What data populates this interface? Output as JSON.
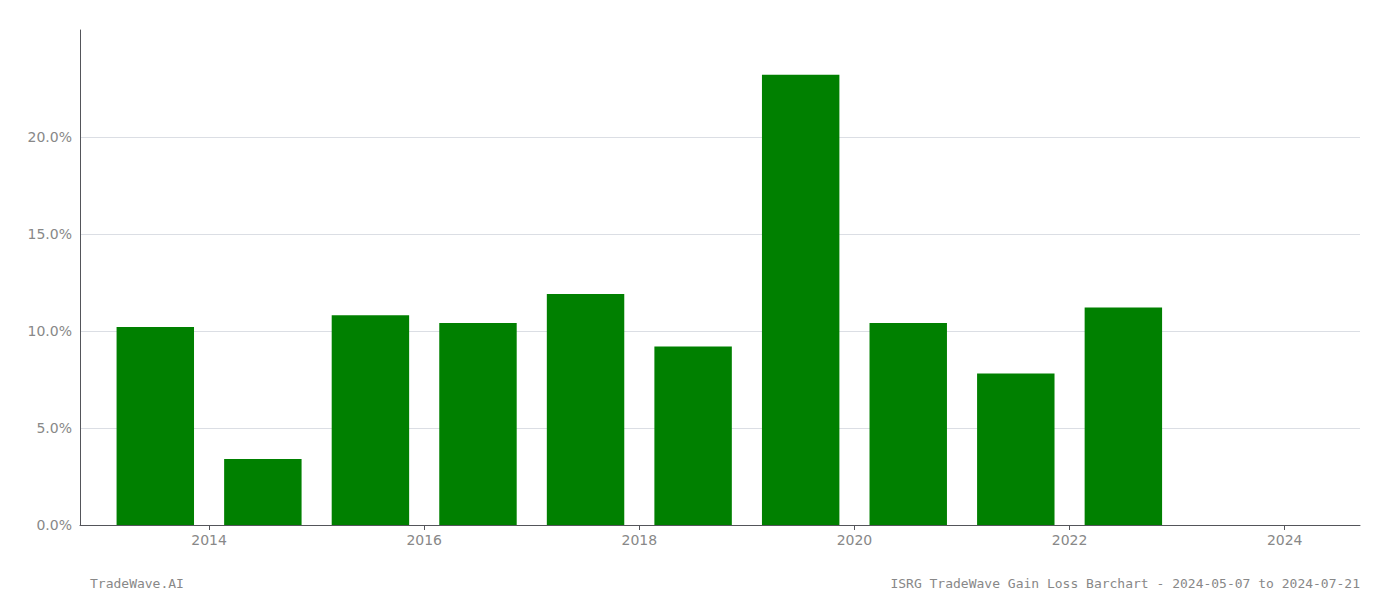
{
  "chart_data": {
    "type": "bar",
    "x": [
      2013,
      2014,
      2015,
      2016,
      2017,
      2018,
      2019,
      2020,
      2021,
      2022,
      2023
    ],
    "values": [
      0.102,
      0.034,
      0.108,
      0.104,
      0.119,
      0.092,
      0.232,
      0.104,
      0.078,
      0.112,
      0.0
    ],
    "color": "#008000",
    "xlim": [
      2012.8,
      2024.7
    ],
    "xticks": [
      2014,
      2016,
      2018,
      2020,
      2022,
      2024
    ],
    "ylim": [
      0.0,
      0.255
    ],
    "yticks": [
      {
        "value": 0.0,
        "label": "0.0%"
      },
      {
        "value": 0.05,
        "label": "5.0%"
      },
      {
        "value": 0.1,
        "label": "10.0%"
      },
      {
        "value": 0.15,
        "label": "15.0%"
      },
      {
        "value": 0.2,
        "label": "20.0%"
      }
    ],
    "grid": true,
    "annotations": [
      "TradeWave.AI",
      "ISRG TradeWave Gain Loss Barchart - 2024-05-07 to 2024-07-21"
    ]
  }
}
